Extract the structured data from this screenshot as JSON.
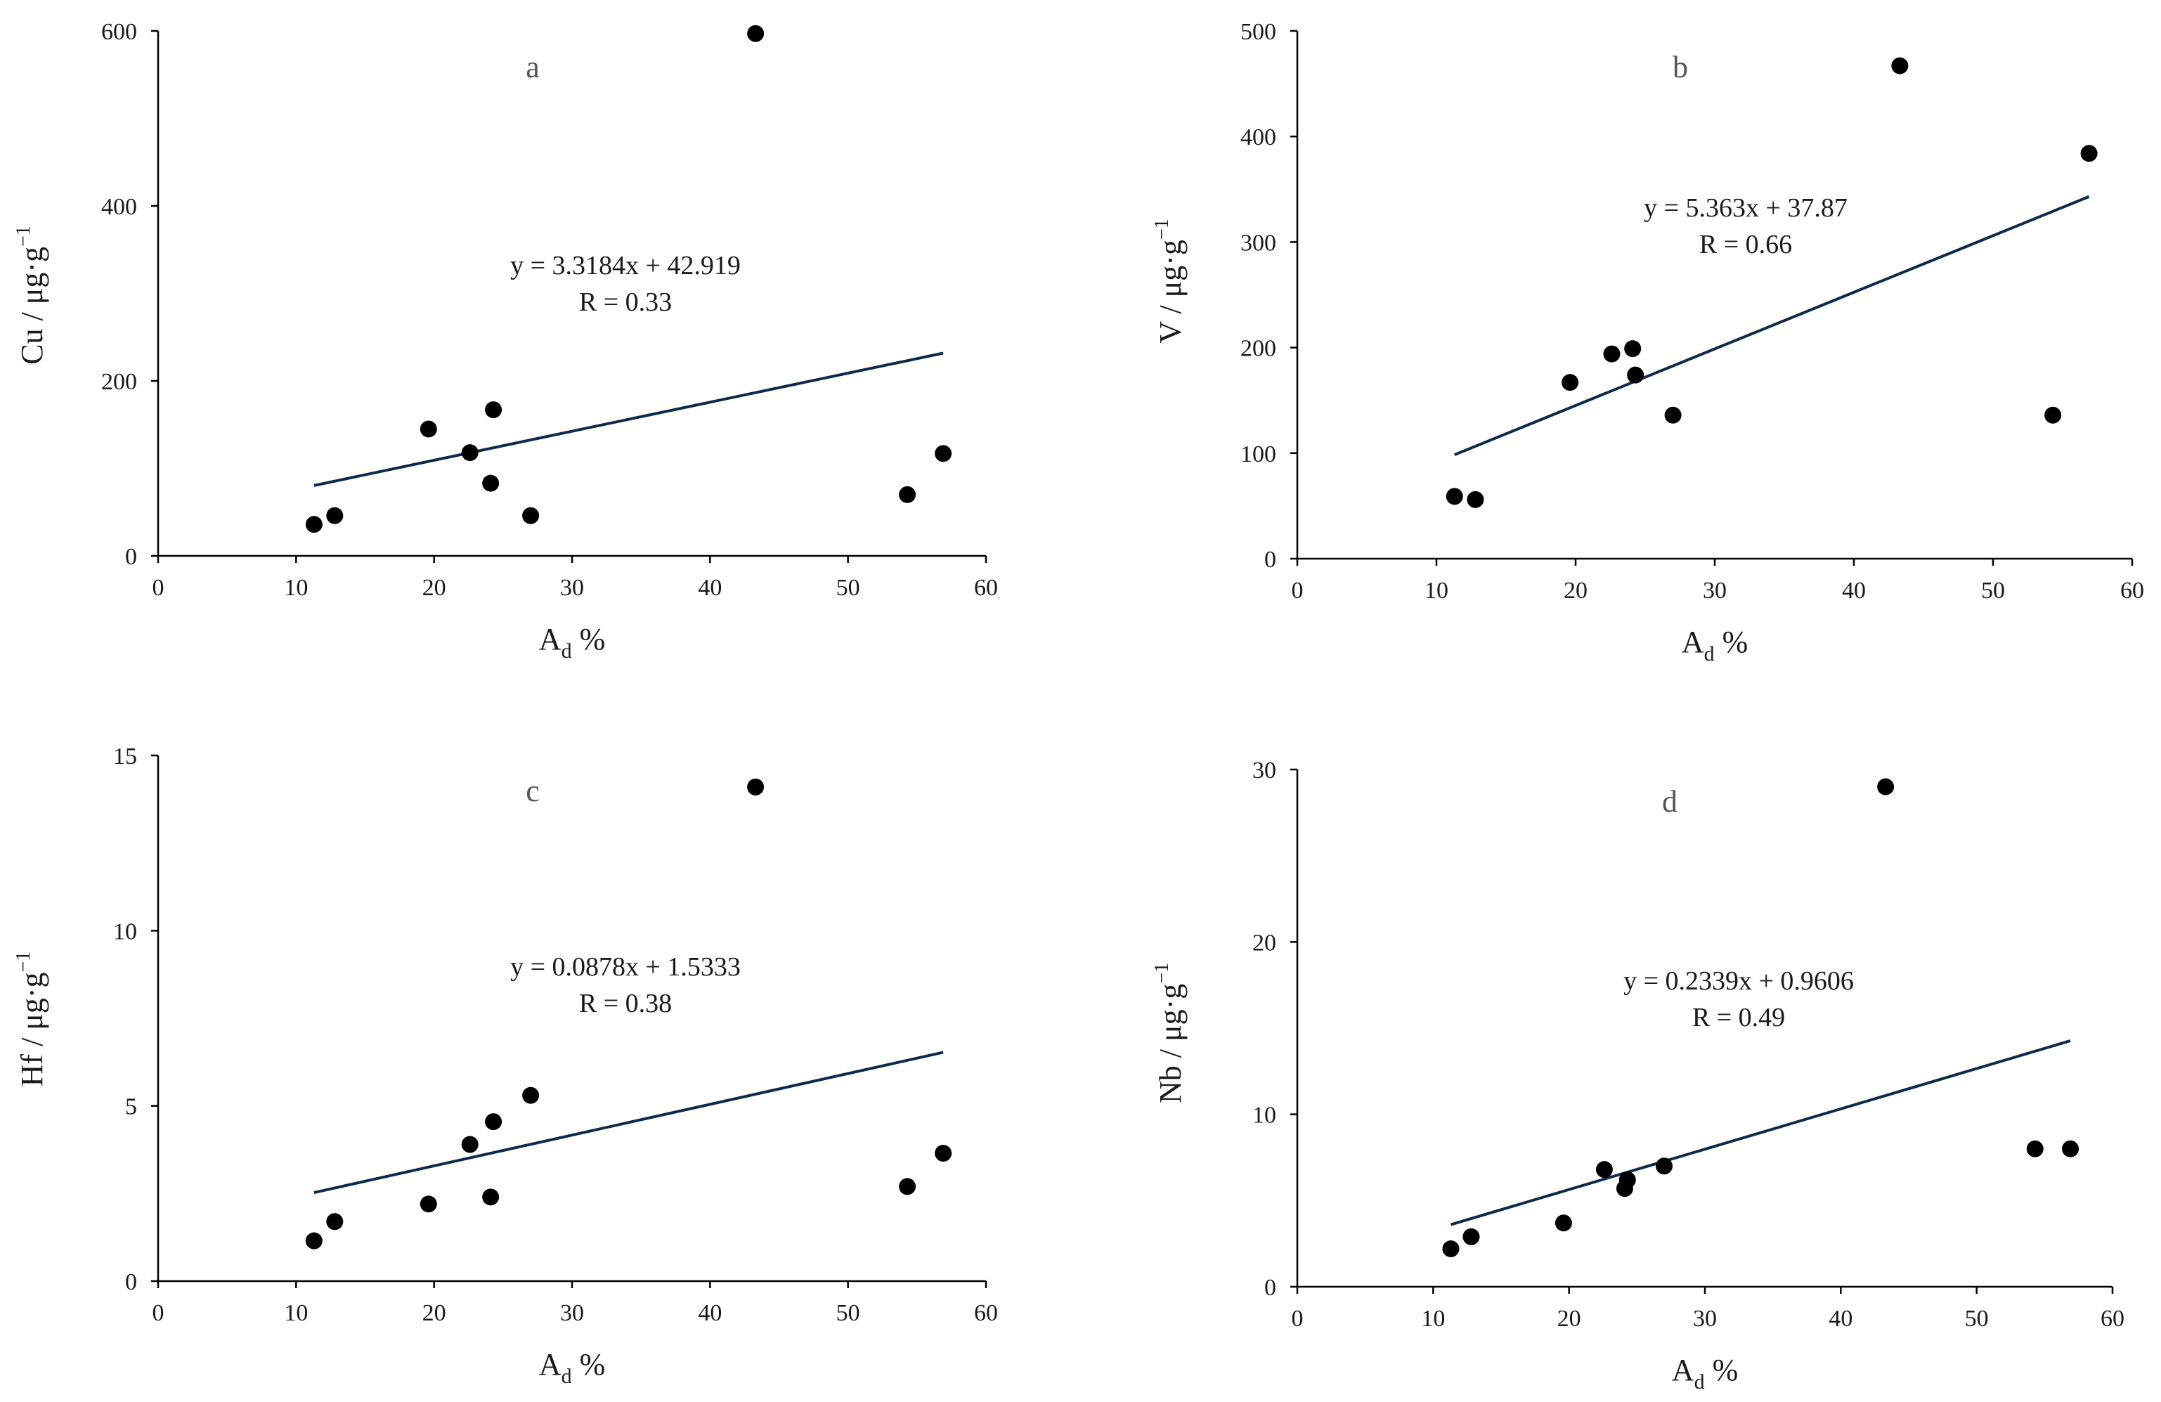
{
  "chart_data": [
    {
      "type": "scatter",
      "panel": "a",
      "xlabel": "A",
      "xlabel_sub": "d",
      "xlabel_suffix": " %",
      "ylabel": "Cu / μg·g",
      "ylabel_sup": "−1",
      "xlim": [
        0,
        60
      ],
      "ylim": [
        0,
        600
      ],
      "xticks": [
        0,
        10,
        20,
        30,
        40,
        50,
        60
      ],
      "yticks": [
        0,
        200,
        400,
        600
      ],
      "points": [
        {
          "x": 11.3,
          "y": 36
        },
        {
          "x": 12.8,
          "y": 46
        },
        {
          "x": 19.6,
          "y": 145
        },
        {
          "x": 22.6,
          "y": 118
        },
        {
          "x": 24.1,
          "y": 83
        },
        {
          "x": 24.3,
          "y": 167
        },
        {
          "x": 27.0,
          "y": 46
        },
        {
          "x": 43.3,
          "y": 597
        },
        {
          "x": 54.3,
          "y": 70
        },
        {
          "x": 56.9,
          "y": 117
        }
      ],
      "trendline": {
        "slope": 3.3184,
        "intercept": 42.919,
        "x_start": 11.3,
        "x_end": 56.9
      },
      "equation": "y = 3.3184x + 42.919",
      "r_text": "R = 0.33"
    },
    {
      "type": "scatter",
      "panel": "b",
      "xlabel": "A",
      "xlabel_sub": "d",
      "xlabel_suffix": " %",
      "ylabel": "V / μg·g",
      "ylabel_sup": "−1",
      "xlim": [
        0,
        60
      ],
      "ylim": [
        0,
        500
      ],
      "xticks": [
        0,
        10,
        20,
        30,
        40,
        50,
        60
      ],
      "yticks": [
        0,
        100,
        200,
        300,
        400,
        500
      ],
      "points": [
        {
          "x": 11.3,
          "y": 59
        },
        {
          "x": 12.8,
          "y": 56
        },
        {
          "x": 19.6,
          "y": 167
        },
        {
          "x": 22.6,
          "y": 194
        },
        {
          "x": 24.1,
          "y": 199
        },
        {
          "x": 24.3,
          "y": 174
        },
        {
          "x": 27.0,
          "y": 136
        },
        {
          "x": 43.3,
          "y": 467
        },
        {
          "x": 54.3,
          "y": 136
        },
        {
          "x": 56.9,
          "y": 384
        }
      ],
      "trendline": {
        "slope": 5.363,
        "intercept": 37.87,
        "x_start": 11.3,
        "x_end": 56.9
      },
      "equation": "y = 5.363x + 37.87",
      "r_text": "R = 0.66"
    },
    {
      "type": "scatter",
      "panel": "c",
      "xlabel": "A",
      "xlabel_sub": "d",
      "xlabel_suffix": " %",
      "ylabel": "Hf / μg·g",
      "ylabel_sup": "−1",
      "xlim": [
        0,
        60
      ],
      "ylim": [
        0,
        15
      ],
      "xticks": [
        0,
        10,
        20,
        30,
        40,
        50,
        60
      ],
      "yticks": [
        0,
        5,
        10,
        15
      ],
      "points": [
        {
          "x": 11.3,
          "y": 1.15
        },
        {
          "x": 12.8,
          "y": 1.7
        },
        {
          "x": 19.6,
          "y": 2.2
        },
        {
          "x": 22.6,
          "y": 3.9
        },
        {
          "x": 24.1,
          "y": 2.4
        },
        {
          "x": 24.3,
          "y": 4.55
        },
        {
          "x": 27.0,
          "y": 5.3
        },
        {
          "x": 43.3,
          "y": 14.1
        },
        {
          "x": 54.3,
          "y": 2.7
        },
        {
          "x": 56.9,
          "y": 3.65
        }
      ],
      "trendline": {
        "slope": 0.0878,
        "intercept": 1.5333,
        "x_start": 11.3,
        "x_end": 56.9
      },
      "equation": "y = 0.0878x + 1.5333",
      "r_text": "R = 0.38"
    },
    {
      "type": "scatter",
      "panel": "d",
      "xlabel": "A",
      "xlabel_sub": "d",
      "xlabel_suffix": " %",
      "ylabel": "Nb / μg·g",
      "ylabel_sup": "−1",
      "xlim": [
        0,
        60
      ],
      "ylim": [
        0,
        30
      ],
      "xticks": [
        0,
        10,
        20,
        30,
        40,
        50,
        60
      ],
      "yticks": [
        0,
        10,
        20,
        30
      ],
      "points": [
        {
          "x": 11.3,
          "y": 2.2
        },
        {
          "x": 12.8,
          "y": 2.9
        },
        {
          "x": 19.6,
          "y": 3.7
        },
        {
          "x": 22.6,
          "y": 6.8
        },
        {
          "x": 24.1,
          "y": 5.7
        },
        {
          "x": 24.3,
          "y": 6.2
        },
        {
          "x": 27.0,
          "y": 7.0
        },
        {
          "x": 43.3,
          "y": 29.0
        },
        {
          "x": 54.3,
          "y": 8.0
        },
        {
          "x": 56.9,
          "y": 8.0
        }
      ],
      "trendline": {
        "slope": 0.2339,
        "intercept": 0.9606,
        "x_start": 11.3,
        "x_end": 56.9
      },
      "equation": "y = 0.2339x + 0.9606",
      "r_text": "R = 0.49"
    }
  ]
}
